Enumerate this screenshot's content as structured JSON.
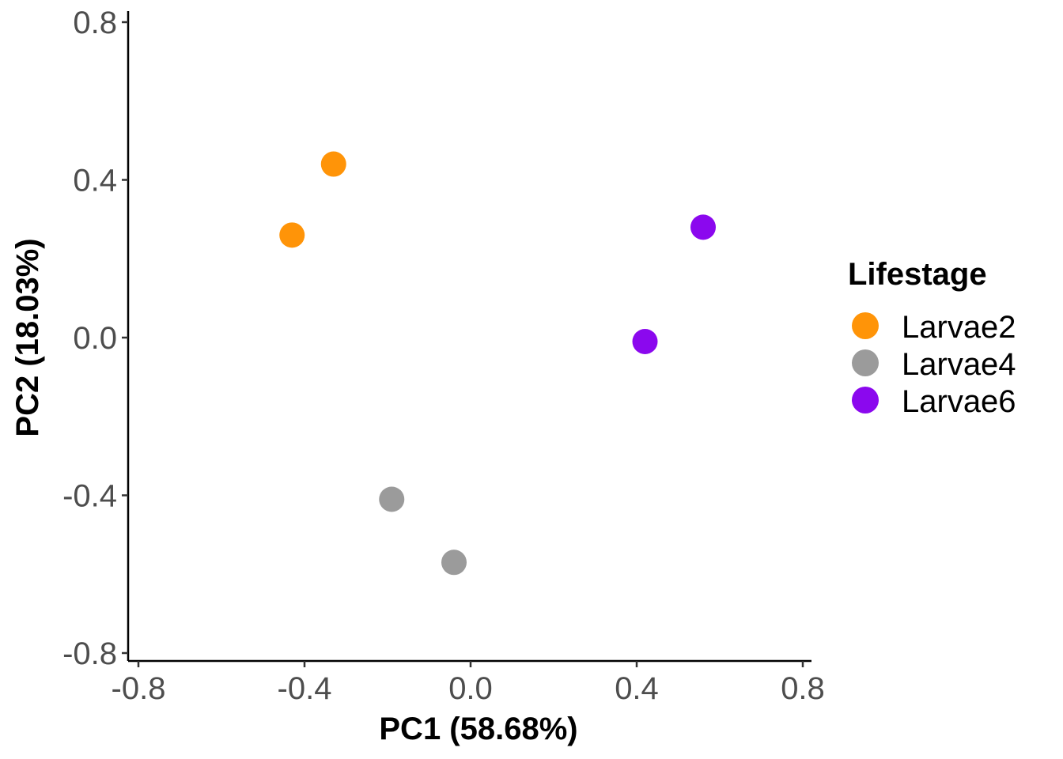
{
  "chart_data": {
    "type": "scatter",
    "title": "",
    "xlabel": "PC1 (58.68%)",
    "ylabel": "PC2 (18.03%)",
    "xlim": [
      -0.82,
      0.82
    ],
    "ylim": [
      -0.82,
      0.82
    ],
    "x_ticks": [
      -0.8,
      -0.4,
      0.0,
      0.4,
      0.8
    ],
    "x_tick_labels": [
      "-0.8",
      "-0.4",
      "0.0",
      "0.4",
      "0.8"
    ],
    "y_ticks": [
      -0.8,
      -0.4,
      0.0,
      0.4,
      0.8
    ],
    "y_tick_labels": [
      "-0.8",
      "-0.4",
      "0.0",
      "0.4",
      "0.8"
    ],
    "grid": false,
    "legend": {
      "title": "Lifestage",
      "placement": "right"
    },
    "series": [
      {
        "name": "Larvae2",
        "color": "#FF9408",
        "points": [
          {
            "x": -0.33,
            "y": 0.44
          },
          {
            "x": -0.43,
            "y": 0.26
          }
        ]
      },
      {
        "name": "Larvae4",
        "color": "#9B9B9B",
        "points": [
          {
            "x": -0.19,
            "y": -0.41
          },
          {
            "x": -0.04,
            "y": -0.57
          }
        ]
      },
      {
        "name": "Larvae6",
        "color": "#8B08EE",
        "points": [
          {
            "x": 0.56,
            "y": 0.28
          },
          {
            "x": 0.42,
            "y": -0.01
          }
        ]
      }
    ]
  }
}
